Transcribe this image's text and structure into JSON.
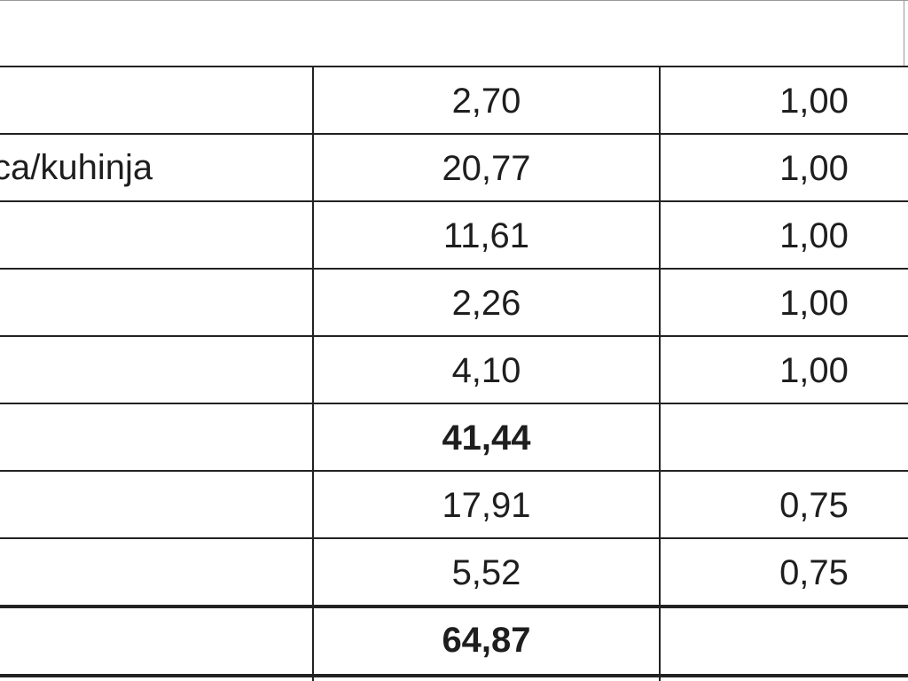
{
  "table": {
    "rows": [
      {
        "area": "2,70",
        "coefficient": "1,00"
      },
      {
        "label": "ca/kuhinja",
        "area": "20,77",
        "coefficient": "1,00"
      },
      {
        "area": "11,61",
        "coefficient": "1,00"
      },
      {
        "area": "2,26",
        "coefficient": "1,00"
      },
      {
        "area": "4,10",
        "coefficient": "1,00"
      },
      {
        "area": "41,44",
        "bold": true
      },
      {
        "area": "17,91",
        "coefficient": "0,75"
      },
      {
        "area": "5,52",
        "coefficient": "0,75"
      },
      {
        "area": "64,87",
        "bold": true
      }
    ]
  }
}
